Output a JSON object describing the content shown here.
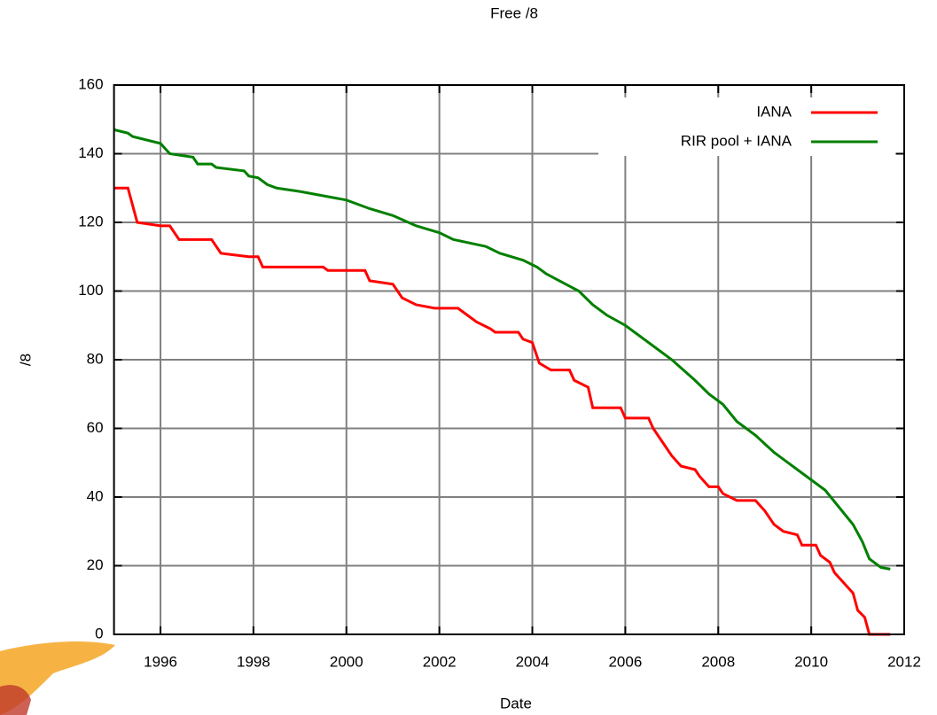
{
  "chart_data": {
    "type": "line",
    "title": "Free /8",
    "x_label": "Date",
    "y_label": "/8",
    "xlim": [
      1995,
      2012
    ],
    "xticks": [
      1996,
      1998,
      2000,
      2002,
      2004,
      2006,
      2008,
      2010,
      2012
    ],
    "ylim": [
      0,
      160
    ],
    "yticks": [
      0,
      20,
      40,
      60,
      80,
      100,
      120,
      140,
      160
    ],
    "grid": true,
    "legend": "top-right",
    "series": [
      {
        "name": "IANA",
        "color": "#ff0000",
        "x": [
          1995.0,
          1995.3,
          1995.5,
          1996.0,
          1996.2,
          1996.4,
          1997.1,
          1997.3,
          1997.9,
          1998.1,
          1998.2,
          1999.5,
          1999.6,
          2000.4,
          2000.5,
          2001.0,
          2001.2,
          2001.5,
          2001.9,
          2002.4,
          2002.6,
          2002.8,
          2003.1,
          2003.2,
          2003.7,
          2003.8,
          2004.0,
          2004.15,
          2004.4,
          2004.8,
          2004.9,
          2005.2,
          2005.3,
          2005.9,
          2006.0,
          2006.5,
          2006.6,
          2006.8,
          2007.0,
          2007.2,
          2007.5,
          2007.6,
          2007.8,
          2008.0,
          2008.1,
          2008.4,
          2008.8,
          2009.0,
          2009.2,
          2009.4,
          2009.7,
          2009.8,
          2010.1,
          2010.2,
          2010.4,
          2010.5,
          2010.7,
          2010.9,
          2011.0,
          2011.15,
          2011.25,
          2011.7
        ],
        "values": [
          130,
          130,
          120,
          119,
          119,
          115,
          115,
          111,
          110,
          110,
          107,
          107,
          106,
          106,
          103,
          102,
          98,
          96,
          95,
          95,
          93,
          91,
          89,
          88,
          88,
          86,
          85,
          79,
          77,
          77,
          74,
          72,
          66,
          66,
          63,
          63,
          60,
          56,
          52,
          49,
          48,
          46,
          43,
          43,
          41,
          39,
          39,
          36,
          32,
          30,
          29,
          26,
          26,
          23,
          21,
          18,
          15,
          12,
          7,
          5,
          0,
          0
        ]
      },
      {
        "name": "RIR pool + IANA",
        "color": "#008000",
        "x": [
          1995.0,
          1995.3,
          1995.4,
          1996.0,
          1996.2,
          1996.7,
          1996.8,
          1997.1,
          1997.2,
          1997.8,
          1997.9,
          1998.1,
          1998.3,
          1998.5,
          1999.0,
          2000.0,
          2000.5,
          2001.0,
          2001.5,
          2002.0,
          2002.3,
          2003.0,
          2003.3,
          2003.8,
          2004.1,
          2004.3,
          2005.0,
          2005.3,
          2005.6,
          2006.0,
          2006.3,
          2006.6,
          2007.0,
          2007.5,
          2007.8,
          2008.1,
          2008.4,
          2008.8,
          2009.2,
          2009.6,
          2010.0,
          2010.3,
          2010.6,
          2010.9,
          2011.1,
          2011.25,
          2011.5,
          2011.7
        ],
        "values": [
          147,
          146,
          145,
          143,
          140,
          139,
          137,
          137,
          136,
          135,
          133.5,
          133,
          131,
          130,
          129,
          126.5,
          124,
          122,
          119,
          117,
          115,
          113,
          111,
          109,
          107,
          105,
          100,
          96,
          93,
          90,
          87,
          84,
          80,
          74,
          70,
          67,
          62,
          58,
          53,
          49,
          45,
          42,
          37,
          32,
          27,
          22,
          19.5,
          19
        ]
      }
    ]
  }
}
